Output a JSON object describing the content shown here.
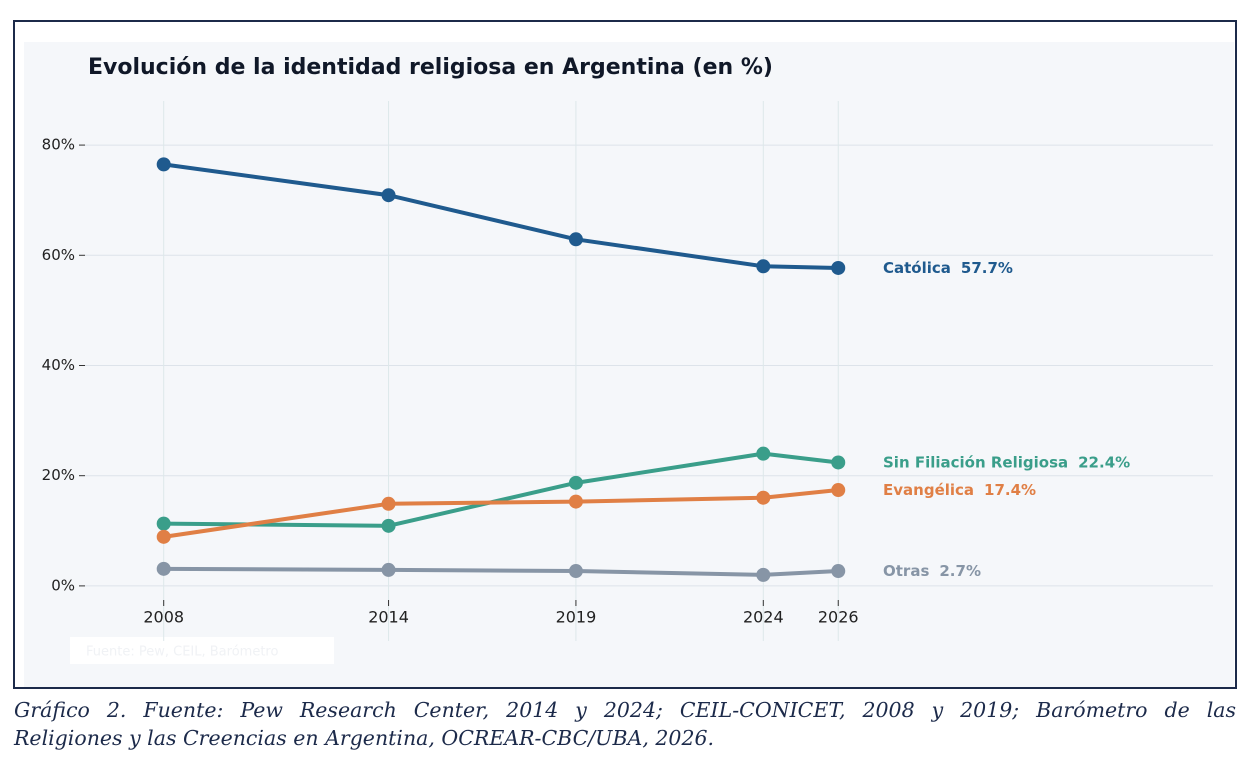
{
  "chart_data": {
    "type": "line",
    "title": "Evolución de la identidad religiosa en Argentina (en %)",
    "source_note": "Fuente: Pew, CEIL, Barómetro",
    "x": [
      2008,
      2014,
      2019,
      2024,
      2026
    ],
    "xlim": [
      2005.9,
      2036
    ],
    "xticks": [
      2008,
      2014,
      2019,
      2024,
      2026
    ],
    "ylim": [
      -10,
      88
    ],
    "yticks": [
      {
        "value": 0,
        "label": "0%"
      },
      {
        "value": 20,
        "label": "20%"
      },
      {
        "value": 40,
        "label": "40%"
      },
      {
        "value": 60,
        "label": "60%"
      },
      {
        "value": 80,
        "label": "80%"
      }
    ],
    "grid": true,
    "series": [
      {
        "name": "Católica",
        "color": "#1f5a8e",
        "values": [
          76.5,
          70.9,
          62.9,
          58,
          57.7
        ],
        "value_labels": [
          null,
          null,
          null,
          null,
          "57.7%"
        ]
      },
      {
        "name": "Sin Filiación Religiosa",
        "color": "#3a9e8a",
        "values": [
          11.3,
          10.9,
          18.7,
          24,
          22.4
        ],
        "value_labels": [
          null,
          null,
          null,
          null,
          "22.4%"
        ]
      },
      {
        "name": "Evangélica",
        "color": "#e07f45",
        "values": [
          8.9,
          14.9,
          15.3,
          16,
          17.4
        ],
        "value_labels": [
          null,
          null,
          null,
          null,
          "17.4%"
        ]
      },
      {
        "name": "Otras",
        "color": "#8795a6",
        "values": [
          3.1,
          2.9,
          2.7,
          2,
          2.7
        ],
        "value_labels": [
          null,
          null,
          null,
          null,
          "2.7%"
        ]
      }
    ]
  },
  "caption": [
    "Gráfico 2. Fuente: Pew Research Center, 2014 y 2024; CEIL-CONICET, 2008 y 2019; Barómetro de las",
    "Religiones y las Creencias en Argentina, OCREAR-CBC/UBA, 2026."
  ]
}
